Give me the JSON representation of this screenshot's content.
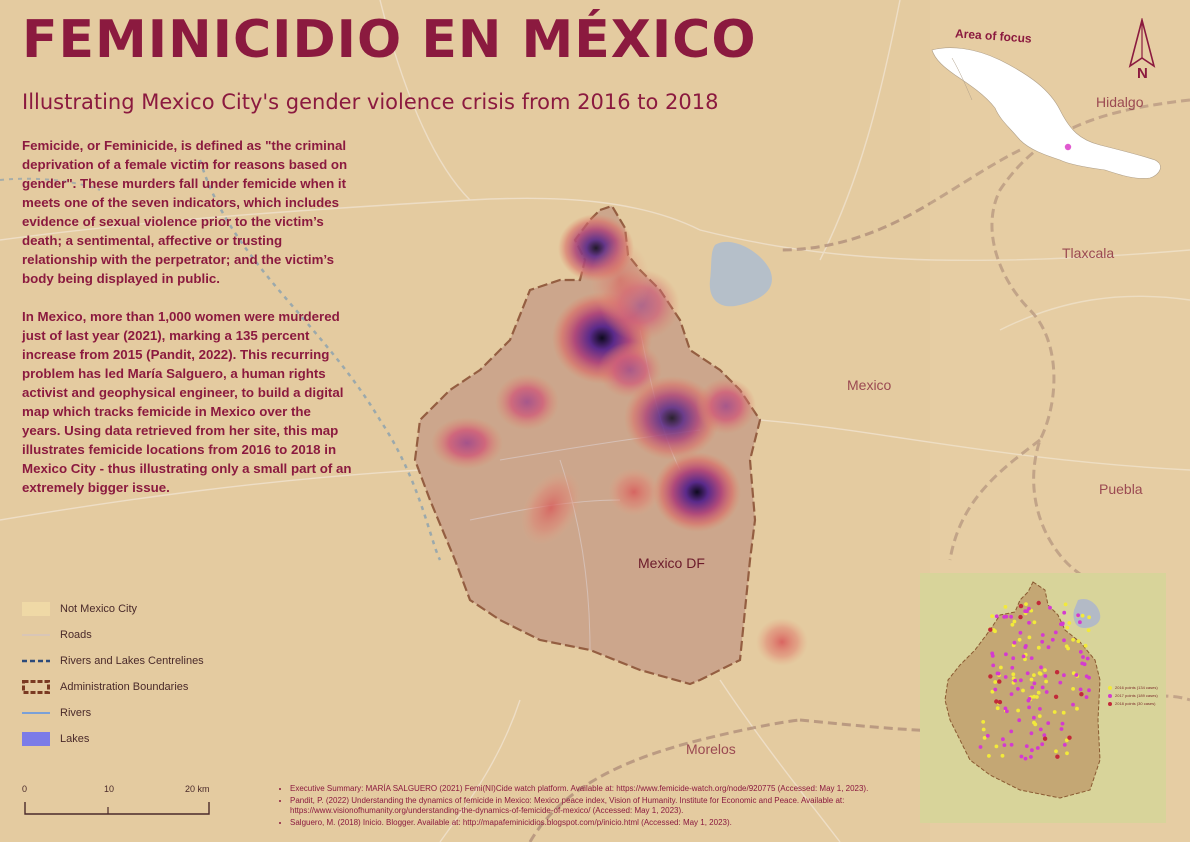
{
  "title": "FEMINICIDIO EN MÉXICO",
  "subtitle": "Illustrating Mexico City's gender violence crisis from 2016 to 2018",
  "body": {
    "paragraph1": "Femicide, or Feminicide, is defined as \"the criminal deprivation of a female victim for reasons based on gender\". These murders fall under femicide when it meets one of the seven indicators,  which includes evidence of sexual violence prior to the victim’s death; a sentimental, affective or trusting relationship with the perpetrator; and the victim’s body being displayed in public.",
    "paragraph2": " In Mexico, more than 1,000 women were murdered just of last year (2021),  marking a 135 percent increase from 2015 (Pandit, 2022). This recurring problem has led María Salguero, a human rights activist and geophysical engineer, to build a digital map which tracks femicide in Mexico over the years. Using data retrieved from her site, this map illustrates femicide locations from 2016 to 2018 in Mexico City - thus illustrating only a small part of an extremely bigger issue."
  },
  "places": {
    "hidalgo": "Hidalgo",
    "tlaxcala": "Tlaxcala",
    "mexico": "Mexico",
    "puebla": "Puebla",
    "mexico_df": "Mexico DF",
    "morelos": "Morelos"
  },
  "inset": {
    "label": "Area of focus"
  },
  "north_arrow": {
    "letter": "N"
  },
  "legend": {
    "items": [
      {
        "label": "Not Mexico City",
        "symbol": "fill",
        "color": "#efd9a6"
      },
      {
        "label": "Roads",
        "symbol": "line",
        "color": "#d9c6b6"
      },
      {
        "label": "Rivers and Lakes Centrelines",
        "symbol": "dashed",
        "color": "#2b4a7a"
      },
      {
        "label": "Administration Boundaries",
        "symbol": "boundary",
        "color": "#7a3a22"
      },
      {
        "label": "Rivers",
        "symbol": "line",
        "color": "#7aa0d8"
      },
      {
        "label": "Lakes",
        "symbol": "fill",
        "color": "#7b7be8"
      }
    ]
  },
  "scale_bar": {
    "labels": [
      "0",
      "10",
      "20 km"
    ]
  },
  "inset_points_legend": [
    "2016 points (134 cases)",
    "2017 points (189 cases)",
    "2018 points (30 cases)"
  ],
  "references": [
    "Executive Summary: MARÍA SALGUERO (2021) Femi(NI)Cide watch platform. Available at: https://www.femicide-watch.org/node/920775 (Accessed: May 1, 2023).",
    "Pandit, P. (2022) Understanding the dynamics of femicide in Mexico: Mexico peace index, Vision of Humanity. Institute for Economic and Peace. Available at: https://www.visionofhumanity.org/understanding-the-dynamics-of-femicide-of-mexico/ (Accessed: May 1, 2023).",
    "Salguero, M. (2018) Inicio. Blogger. Available at: http://mapafeminicidios.blogspot.com/p/inicio.html (Accessed: May 1, 2023)."
  ],
  "colors": {
    "accent": "#8b1a3f",
    "background": "#e6cfa5",
    "heat_core": "#1a0f2e",
    "heat_mid": "#7a3a9a",
    "heat_outer": "#e07a5f"
  }
}
